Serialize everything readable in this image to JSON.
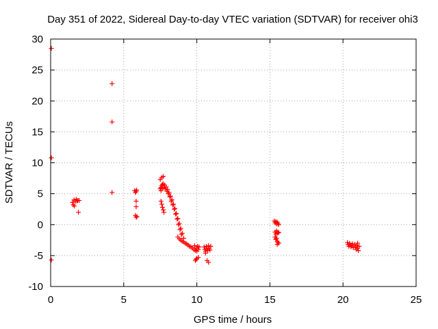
{
  "chart_data": {
    "type": "scatter",
    "title": "Day 351 of 2022, Sidereal Day-to-day VTEC variation (SDTVAR) for receiver ohi3",
    "xlabel": "GPS time / hours",
    "ylabel": "SDTVAR / TECUs",
    "xlim": [
      0,
      25
    ],
    "ylim": [
      -10,
      30
    ],
    "xticks": [
      0,
      5,
      10,
      15,
      20,
      25
    ],
    "yticks": [
      -10,
      -5,
      0,
      5,
      10,
      15,
      20,
      25,
      30
    ],
    "grid": true,
    "marker": "+",
    "color": "#ff0000",
    "series": [
      {
        "name": "SDTVAR",
        "points": [
          [
            0.05,
            28.5
          ],
          [
            0.05,
            10.8
          ],
          [
            0.05,
            -5.7
          ],
          [
            1.5,
            3.6
          ],
          [
            1.55,
            3.2
          ],
          [
            1.6,
            4.0
          ],
          [
            1.62,
            3.0
          ],
          [
            1.7,
            3.8
          ],
          [
            1.75,
            4.1
          ],
          [
            1.8,
            3.8
          ],
          [
            1.85,
            3.9
          ],
          [
            1.9,
            2.0
          ],
          [
            1.95,
            3.9
          ],
          [
            4.2,
            22.8
          ],
          [
            4.2,
            16.6
          ],
          [
            4.2,
            5.2
          ],
          [
            5.75,
            5.5
          ],
          [
            5.8,
            5.2
          ],
          [
            5.85,
            5.4
          ],
          [
            5.85,
            3.8
          ],
          [
            5.85,
            2.9
          ],
          [
            5.8,
            1.5
          ],
          [
            5.85,
            1.2
          ],
          [
            5.9,
            1.3
          ],
          [
            5.88,
            5.6
          ],
          [
            7.5,
            7.3
          ],
          [
            7.6,
            7.6
          ],
          [
            7.7,
            7.8
          ],
          [
            7.55,
            3.8
          ],
          [
            7.6,
            3.3
          ],
          [
            7.65,
            2.8
          ],
          [
            7.7,
            2.4
          ],
          [
            7.75,
            2.0
          ],
          [
            7.5,
            5.8
          ],
          [
            7.55,
            6.0
          ],
          [
            7.6,
            6.3
          ],
          [
            7.65,
            6.5
          ],
          [
            7.7,
            6.6
          ],
          [
            7.8,
            6.4
          ],
          [
            7.9,
            6.1
          ],
          [
            8.0,
            5.7
          ],
          [
            8.1,
            5.2
          ],
          [
            8.2,
            4.6
          ],
          [
            8.3,
            4.0
          ],
          [
            8.4,
            3.3
          ],
          [
            8.5,
            2.6
          ],
          [
            8.6,
            1.8
          ],
          [
            8.7,
            1.0
          ],
          [
            8.8,
            0.2
          ],
          [
            8.9,
            -0.6
          ],
          [
            9.0,
            -1.4
          ],
          [
            9.1,
            -2.2
          ],
          [
            7.55,
            5.5
          ],
          [
            7.65,
            5.9
          ],
          [
            7.75,
            6.0
          ],
          [
            7.85,
            5.8
          ],
          [
            7.95,
            5.4
          ],
          [
            8.05,
            5.0
          ],
          [
            8.15,
            4.5
          ],
          [
            8.25,
            3.8
          ],
          [
            8.35,
            3.2
          ],
          [
            8.45,
            2.5
          ],
          [
            8.55,
            1.7
          ],
          [
            8.65,
            0.9
          ],
          [
            8.75,
            0.0
          ],
          [
            8.85,
            -0.8
          ],
          [
            8.95,
            -1.6
          ],
          [
            8.7,
            -2.0
          ],
          [
            8.8,
            -2.3
          ],
          [
            8.9,
            -2.5
          ],
          [
            9.0,
            -2.7
          ],
          [
            9.1,
            -2.8
          ],
          [
            9.2,
            -3.0
          ],
          [
            9.3,
            -3.1
          ],
          [
            9.4,
            -3.3
          ],
          [
            9.5,
            -3.5
          ],
          [
            9.6,
            -3.6
          ],
          [
            9.7,
            -3.8
          ],
          [
            9.8,
            -4.0
          ],
          [
            9.9,
            -4.2
          ],
          [
            10.0,
            -4.3
          ],
          [
            10.1,
            -4.0
          ],
          [
            10.15,
            -3.6
          ],
          [
            9.85,
            -3.4
          ],
          [
            9.95,
            -3.8
          ],
          [
            10.05,
            -3.5
          ],
          [
            9.9,
            -5.8
          ],
          [
            9.95,
            -5.6
          ],
          [
            10.0,
            -5.5
          ],
          [
            10.1,
            -5.3
          ],
          [
            10.5,
            -3.6
          ],
          [
            10.55,
            -4.0
          ],
          [
            10.6,
            -4.3
          ],
          [
            10.65,
            -3.5
          ],
          [
            10.7,
            -3.9
          ],
          [
            10.75,
            -4.2
          ],
          [
            10.8,
            -3.4
          ],
          [
            10.85,
            -3.8
          ],
          [
            10.9,
            -4.1
          ],
          [
            10.95,
            -3.5
          ],
          [
            10.7,
            -5.8
          ],
          [
            10.8,
            -6.1
          ],
          [
            10.6,
            -4.6
          ],
          [
            15.3,
            0.6
          ],
          [
            15.35,
            0.3
          ],
          [
            15.4,
            0.5
          ],
          [
            15.45,
            0.1
          ],
          [
            15.5,
            0.4
          ],
          [
            15.55,
            0.2
          ],
          [
            15.6,
            0.0
          ],
          [
            15.35,
            -1.2
          ],
          [
            15.4,
            -1.5
          ],
          [
            15.45,
            -1.0
          ],
          [
            15.5,
            -1.4
          ],
          [
            15.55,
            -1.2
          ],
          [
            15.6,
            -1.3
          ],
          [
            15.35,
            -2.0
          ],
          [
            15.4,
            -2.4
          ],
          [
            15.45,
            -2.2
          ],
          [
            15.5,
            -2.7
          ],
          [
            15.55,
            -2.9
          ],
          [
            15.6,
            -3.0
          ],
          [
            15.5,
            -3.2
          ],
          [
            20.3,
            -2.9
          ],
          [
            20.35,
            -3.2
          ],
          [
            20.4,
            -3.5
          ],
          [
            20.45,
            -3.0
          ],
          [
            20.5,
            -3.3
          ],
          [
            20.55,
            -3.6
          ],
          [
            20.6,
            -3.4
          ],
          [
            20.65,
            -3.1
          ],
          [
            20.7,
            -3.7
          ],
          [
            20.8,
            -3.2
          ],
          [
            20.85,
            -3.6
          ],
          [
            20.9,
            -4.0
          ],
          [
            20.95,
            -3.4
          ],
          [
            21.0,
            -3.8
          ],
          [
            21.05,
            -4.2
          ],
          [
            21.0,
            -3.0
          ],
          [
            21.1,
            -3.5
          ]
        ]
      }
    ]
  }
}
